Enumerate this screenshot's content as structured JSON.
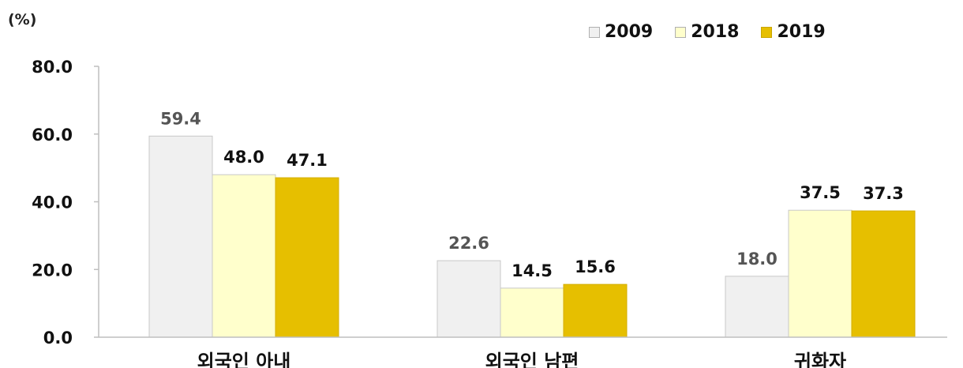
{
  "chart_data": {
    "type": "bar",
    "unit_label": "(%)",
    "categories": [
      "외국인 아내",
      "외국인 남편",
      "귀화자"
    ],
    "series": [
      {
        "name": "2009",
        "values": [
          59.4,
          22.6,
          18.0
        ],
        "color": "#f0f0f0",
        "label_color": "#555555"
      },
      {
        "name": "2018",
        "values": [
          48.0,
          14.5,
          37.5
        ],
        "color": "#ffffcc",
        "label_color": "#111111"
      },
      {
        "name": "2019",
        "values": [
          47.1,
          15.6,
          37.3
        ],
        "color": "#e6bf00",
        "label_color": "#111111"
      }
    ],
    "ylim": [
      0,
      80
    ],
    "yticks": [
      "0.0",
      "20.0",
      "40.0",
      "60.0",
      "80.0"
    ],
    "legend_position": "top-right",
    "grid": false
  }
}
